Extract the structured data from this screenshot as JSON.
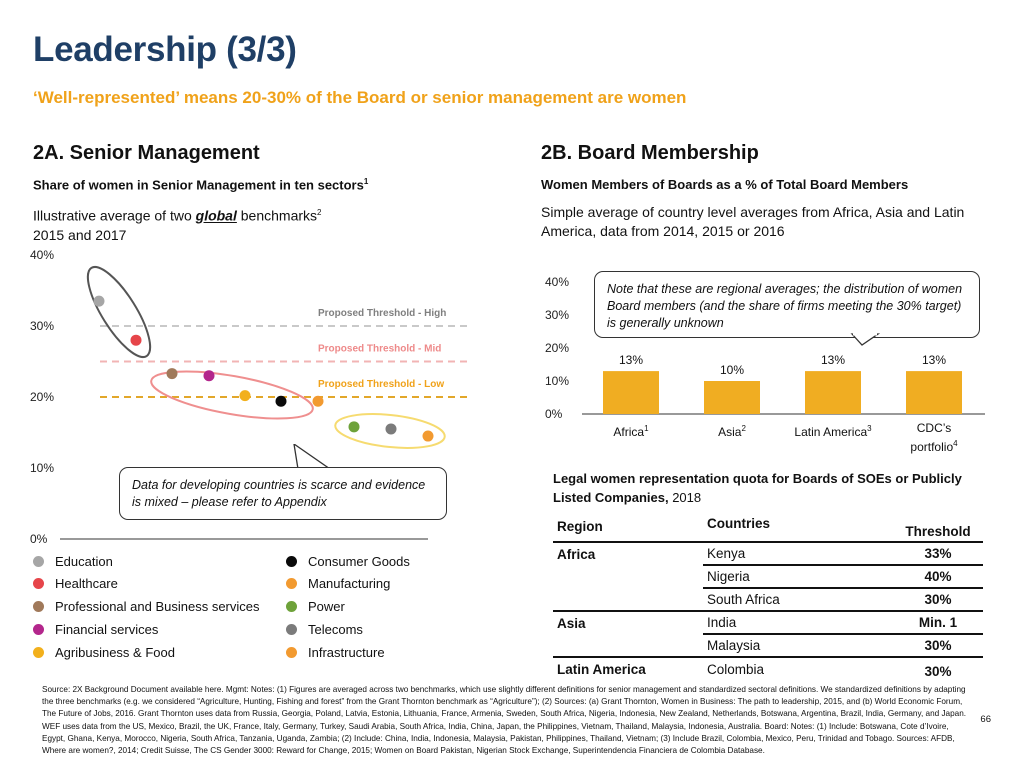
{
  "page": {
    "title": "Leadership (3/3)",
    "subtitle": "‘Well-represented’ means 20-30% of the Board or senior management are women",
    "page_number": "66"
  },
  "left": {
    "heading": "2A. Senior Management",
    "subheading": "Share of women in Senior Management in ten sectors",
    "subheading_sup": "1",
    "desc_prefix": "Illustrative average of two ",
    "desc_em": "global",
    "desc_suffix": " benchmarks",
    "desc_sup": "2",
    "desc_line2": "2015 and 2017",
    "callout": "Data for developing countries is scarce and evidence is mixed – please refer to Appendix",
    "thresholds": {
      "high": "Proposed Threshold - High",
      "mid": "Proposed Threshold - Mid",
      "low": "Proposed Threshold - Low"
    },
    "legend": [
      {
        "label": "Education",
        "color": "#a6a6a6"
      },
      {
        "label": "Healthcare",
        "color": "#e6454a"
      },
      {
        "label": "Professional and Business services",
        "color": "#a0795a"
      },
      {
        "label": "Financial services",
        "color": "#b3268c"
      },
      {
        "label": "Agribusiness & Food",
        "color": "#f2b01c"
      },
      {
        "label": "Consumer Goods",
        "color": "#0a0a0a"
      },
      {
        "label": "Manufacturing",
        "color": "#f29a30"
      },
      {
        "label": "Power",
        "color": "#6ea23a"
      },
      {
        "label": "Telecoms",
        "color": "#7b7b7b"
      },
      {
        "label": "Infrastructure",
        "color": "#f29a30"
      }
    ]
  },
  "right": {
    "heading": "2B. Board Membership",
    "subheading": "Women Members of Boards as a % of Total Board Members",
    "desc": "Simple average of country level averages from Africa, Asia and Latin America, data from 2014, 2015 or 2016",
    "callout": "Note that these are regional averages; the distribution of women Board members (and the share of firms meeting the 30% target) is generally unknown",
    "categories": [
      {
        "label": "Africa",
        "sup": "1"
      },
      {
        "label": "Asia",
        "sup": "2"
      },
      {
        "label": "Latin America",
        "sup": "3"
      },
      {
        "label": "CDC’s portfolio",
        "sup": "4"
      }
    ],
    "quota_title": "Legal women representation quota for Boards of SOEs or Publicly Listed Companies,",
    "quota_year": " 2018",
    "table_headers": [
      "Region",
      "Countries",
      "Threshold"
    ],
    "table_rows": [
      {
        "region": "Africa",
        "country": "Kenya",
        "threshold": "33%"
      },
      {
        "region": "",
        "country": "Nigeria",
        "threshold": "40%"
      },
      {
        "region": "",
        "country": "South Africa",
        "threshold": "30%"
      },
      {
        "region": "Asia",
        "country": "India",
        "threshold": "Min. 1"
      },
      {
        "region": "",
        "country": "Malaysia",
        "threshold": "30%"
      },
      {
        "region": "Latin America",
        "country": "Colombia",
        "threshold": "30%"
      }
    ]
  },
  "footer": {
    "text": "Source: 2X Background Document available here. Mgmt: Notes: (1) Figures are averaged across two benchmarks, which use slightly different definitions for senior management and standardized sectoral definitions. We standardized definitions by adapting the three benchmarks (e.g. we considered “Agriculture, Hunting, Fishing and forest” from the Grant Thornton benchmark as “Agriculture”); (2) Sources: (a) Grant Thornton, Women in Business: The path to leadership, 2015, and (b) World Economic Forum, The Future of Jobs, 2016. Grant Thornton uses data from Russia, Georgia, Poland, Latvia, Estonia, Lithuania, France, Armenia, Sweden, South Africa, Nigeria, Indonesia, New Zealand, Netherlands, Botswana, Argentina, Brazil, India, Germany, and Japan. WEF uses data from the US, Mexico, Brazil, the UK, France, Italy, Germany, Turkey, Saudi Arabia, South Africa, India, China, Japan, the Philippines, Vietnam, Thailand, Malaysia, Indonesia, Australia. Board: Notes: (1) Include: Botswana, Cote d’Ivoire, Egypt, Ghana, Kenya, Morocco, Nigeria, South Africa, Tanzania, Uganda, Zambia; (2) Include: China, India, Indonesia, Malaysia, Pakistan, Philippines, Thailand, Vietnam; (3) Include Brazil, Colombia, Mexico, Peru, Trinidad and Tobago. Sources: AFDB, Where are women?, 2014; Credit Suisse, The CS Gender 3000: Reward for Change, 2015; Women on Board Pakistan, Nigerian Stock Exchange, Superintendencia Financiera de Colombia Database."
  },
  "chart_data": [
    {
      "type": "scatter",
      "title": "Share of women in Senior Management in ten sectors",
      "ylim": [
        0,
        40
      ],
      "yticks": [
        "0%",
        "10%",
        "20%",
        "30%",
        "40%"
      ],
      "thresholds": [
        {
          "name": "Proposed Threshold - High",
          "y": 30
        },
        {
          "name": "Proposed Threshold - Mid",
          "y": 25
        },
        {
          "name": "Proposed Threshold - Low",
          "y": 20
        }
      ],
      "points": [
        {
          "series": "Education",
          "y": 33.5,
          "color": "#a6a6a6"
        },
        {
          "series": "Healthcare",
          "y": 28,
          "color": "#e6454a"
        },
        {
          "series": "Professional and Business services",
          "y": 23.3,
          "color": "#a0795a"
        },
        {
          "series": "Financial services",
          "y": 23,
          "color": "#b3268c"
        },
        {
          "series": "Agribusiness & Food",
          "y": 20.2,
          "color": "#f2b01c"
        },
        {
          "series": "Consumer Goods",
          "y": 19.4,
          "color": "#0a0a0a"
        },
        {
          "series": "Manufacturing",
          "y": 19.4,
          "color": "#f29a30"
        },
        {
          "series": "Power",
          "y": 15.8,
          "color": "#6ea23a"
        },
        {
          "series": "Telecoms",
          "y": 15.5,
          "color": "#7b7b7b"
        },
        {
          "series": "Infrastructure",
          "y": 14.5,
          "color": "#f29a30"
        }
      ]
    },
    {
      "type": "bar",
      "title": "Women Members of Boards as a % of Total Board Members",
      "categories": [
        "Africa",
        "Asia",
        "Latin America",
        "CDC’s portfolio"
      ],
      "values": [
        13,
        10,
        13,
        13
      ],
      "value_labels": [
        "13%",
        "10%",
        "13%",
        "13%"
      ],
      "ylim": [
        0,
        40
      ],
      "yticks": [
        "0%",
        "10%",
        "20%",
        "30%",
        "40%"
      ],
      "color": "#f0ad22"
    }
  ]
}
